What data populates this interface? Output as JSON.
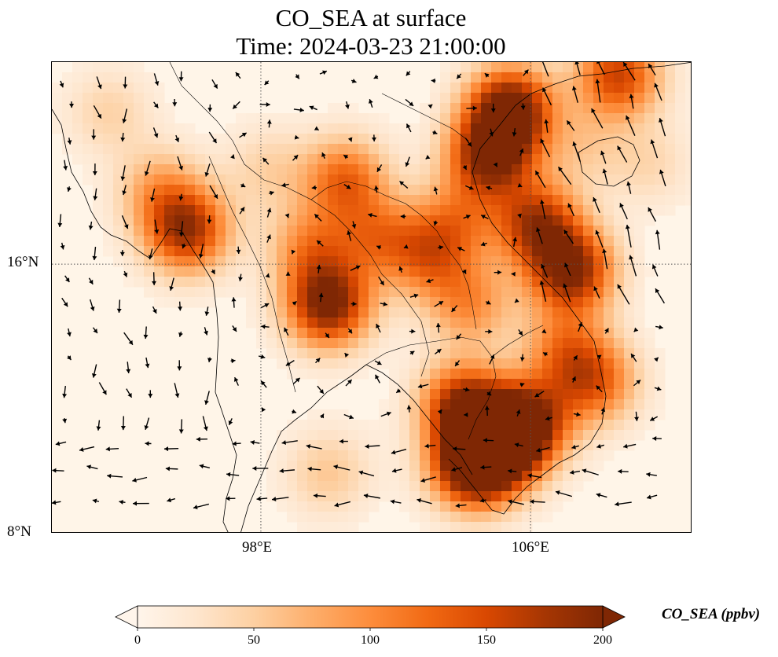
{
  "title": {
    "line1": "CO_SEA at surface",
    "line2": "Time: 2024-03-23 21:00:00"
  },
  "map": {
    "lon_range": [
      91.8,
      110.8
    ],
    "lat_range": [
      8.0,
      22.0
    ],
    "lon_ticks": [
      {
        "value": 98,
        "label": "98°E"
      },
      {
        "value": 106,
        "label": "106°E"
      }
    ],
    "lat_ticks": [
      {
        "value": 16,
        "label": "16°N"
      },
      {
        "value": 8,
        "label": "8°N"
      }
    ],
    "gridlines": "dotted",
    "field_name": "CO_SEA",
    "plumes": [
      {
        "lon": 105.4,
        "lat": 20.6,
        "value": 210
      },
      {
        "lon": 104.8,
        "lat": 19.2,
        "value": 190
      },
      {
        "lon": 106.2,
        "lat": 17.2,
        "value": 160
      },
      {
        "lon": 107.2,
        "lat": 15.8,
        "value": 190
      },
      {
        "lon": 100.0,
        "lat": 14.8,
        "value": 200
      },
      {
        "lon": 99.5,
        "lat": 16.5,
        "value": 90
      },
      {
        "lon": 101.5,
        "lat": 16.8,
        "value": 90
      },
      {
        "lon": 103.0,
        "lat": 16.2,
        "value": 100
      },
      {
        "lon": 103.8,
        "lat": 17.3,
        "value": 80
      },
      {
        "lon": 104.2,
        "lat": 14.8,
        "value": 90
      },
      {
        "lon": 104.0,
        "lat": 11.8,
        "value": 170
      },
      {
        "lon": 105.0,
        "lat": 10.6,
        "value": 210
      },
      {
        "lon": 104.3,
        "lat": 10.0,
        "value": 200
      },
      {
        "lon": 105.9,
        "lat": 11.3,
        "value": 180
      },
      {
        "lon": 107.0,
        "lat": 13.5,
        "value": 90
      },
      {
        "lon": 107.9,
        "lat": 12.5,
        "value": 120
      },
      {
        "lon": 95.8,
        "lat": 17.0,
        "value": 170
      },
      {
        "lon": 95.0,
        "lat": 18.2,
        "value": 70
      },
      {
        "lon": 93.5,
        "lat": 20.5,
        "value": 40
      },
      {
        "lon": 98.2,
        "lat": 18.8,
        "value": 40
      },
      {
        "lon": 100.5,
        "lat": 18.5,
        "value": 120
      },
      {
        "lon": 100.0,
        "lat": 9.8,
        "value": 50
      },
      {
        "lon": 108.6,
        "lat": 21.6,
        "value": 150
      },
      {
        "lon": 107.5,
        "lat": 19.5,
        "value": 40
      },
      {
        "lon": 109.5,
        "lat": 19.0,
        "value": 35
      }
    ]
  },
  "colorbar": {
    "min": 0,
    "max": 200,
    "extend": "both",
    "colors": [
      "#fff5eb",
      "#fee6ce",
      "#fdd0a2",
      "#fdae6b",
      "#fd8d3c",
      "#f16913",
      "#d94801",
      "#a63603",
      "#7f2704"
    ],
    "ticks": [
      {
        "value": 0,
        "label": "0"
      },
      {
        "value": 50,
        "label": "50"
      },
      {
        "value": 100,
        "label": "100"
      },
      {
        "value": 150,
        "label": "150"
      },
      {
        "value": 200,
        "label": "200"
      }
    ],
    "title": "CO_SEA (ppbv)"
  }
}
